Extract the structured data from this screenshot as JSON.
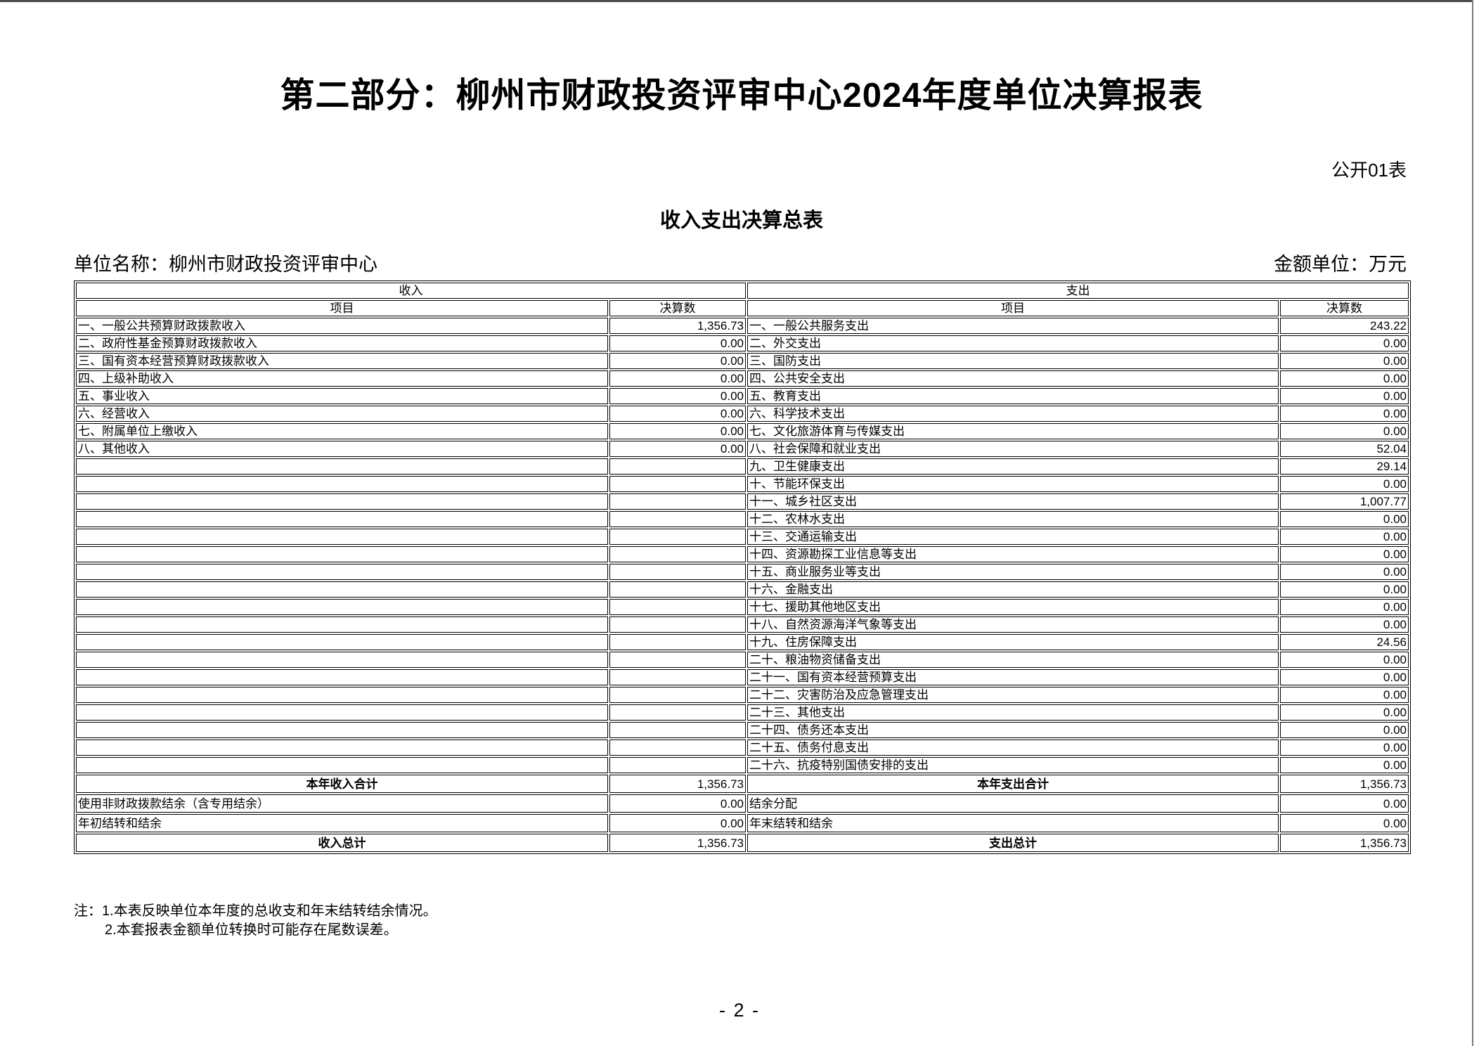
{
  "page": {
    "title": "第二部分：柳州市财政投资评审中心2024年度单位决算报表",
    "doc_label": "公开01表",
    "table_title": "收入支出决算总表",
    "unit_name": "单位名称：柳州市财政投资评审中心",
    "amount_unit": "金额单位：万元",
    "page_number": "- 2 -"
  },
  "table": {
    "income_section_header": "收入",
    "expense_section_header": "支出",
    "item_col_header": "项目",
    "amount_col_header": "决算数",
    "income_rows": [
      {
        "label": "一、一般公共预算财政拨款收入",
        "value": "1,356.73"
      },
      {
        "label": "二、政府性基金预算财政拨款收入",
        "value": "0.00"
      },
      {
        "label": "三、国有资本经营预算财政拨款收入",
        "value": "0.00"
      },
      {
        "label": "四、上级补助收入",
        "value": "0.00"
      },
      {
        "label": "五、事业收入",
        "value": "0.00"
      },
      {
        "label": "六、经营收入",
        "value": "0.00"
      },
      {
        "label": "七、附属单位上缴收入",
        "value": "0.00"
      },
      {
        "label": "八、其他收入",
        "value": "0.00"
      }
    ],
    "expense_rows": [
      {
        "label": "一、一般公共服务支出",
        "value": "243.22"
      },
      {
        "label": "二、外交支出",
        "value": "0.00"
      },
      {
        "label": "三、国防支出",
        "value": "0.00"
      },
      {
        "label": "四、公共安全支出",
        "value": "0.00"
      },
      {
        "label": "五、教育支出",
        "value": "0.00"
      },
      {
        "label": "六、科学技术支出",
        "value": "0.00"
      },
      {
        "label": "七、文化旅游体育与传媒支出",
        "value": "0.00"
      },
      {
        "label": "八、社会保障和就业支出",
        "value": "52.04"
      },
      {
        "label": "九、卫生健康支出",
        "value": "29.14"
      },
      {
        "label": "十、节能环保支出",
        "value": "0.00"
      },
      {
        "label": "十一、城乡社区支出",
        "value": "1,007.77"
      },
      {
        "label": "十二、农林水支出",
        "value": "0.00"
      },
      {
        "label": "十三、交通运输支出",
        "value": "0.00"
      },
      {
        "label": "十四、资源勘探工业信息等支出",
        "value": "0.00"
      },
      {
        "label": "十五、商业服务业等支出",
        "value": "0.00"
      },
      {
        "label": "十六、金融支出",
        "value": "0.00"
      },
      {
        "label": "十七、援助其他地区支出",
        "value": "0.00"
      },
      {
        "label": "十八、自然资源海洋气象等支出",
        "value": "0.00"
      },
      {
        "label": "十九、住房保障支出",
        "value": "24.56"
      },
      {
        "label": "二十、粮油物资储备支出",
        "value": "0.00"
      },
      {
        "label": "二十一、国有资本经营预算支出",
        "value": "0.00"
      },
      {
        "label": "二十二、灾害防治及应急管理支出",
        "value": "0.00"
      },
      {
        "label": "二十三、其他支出",
        "value": "0.00"
      },
      {
        "label": "二十四、债务还本支出",
        "value": "0.00"
      },
      {
        "label": "二十五、债务付息支出",
        "value": "0.00"
      },
      {
        "label": "二十六、抗疫特别国债安排的支出",
        "value": "0.00"
      }
    ],
    "income_total": {
      "label": "本年收入合计",
      "value": "1,356.73"
    },
    "expense_total": {
      "label": "本年支出合计",
      "value": "1,356.73"
    },
    "income_carry_rows": [
      {
        "label": "使用非财政拨款结余（含专用结余）",
        "value": "0.00"
      },
      {
        "label": "年初结转和结余",
        "value": "0.00"
      }
    ],
    "expense_carry_rows": [
      {
        "label": "结余分配",
        "value": "0.00"
      },
      {
        "label": "年末结转和结余",
        "value": "0.00"
      }
    ],
    "income_grand_total": {
      "label": "收入总计",
      "value": "1,356.73"
    },
    "expense_grand_total": {
      "label": "支出总计",
      "value": "1,356.73"
    }
  },
  "notes": {
    "line1": "注：1.本表反映单位本年度的总收支和年末结转结余情况。",
    "line2": "2.本套报表金额单位转换时可能存在尾数误差。"
  }
}
